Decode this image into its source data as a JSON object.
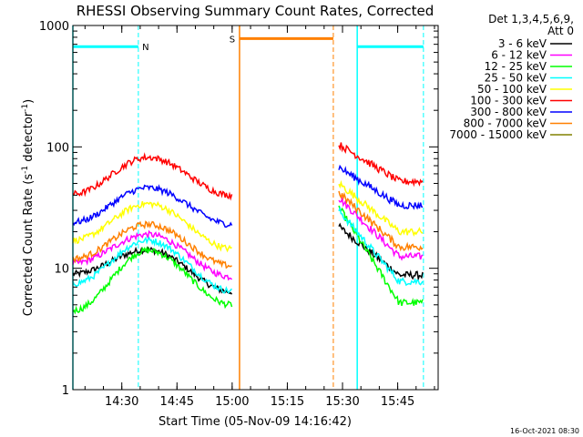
{
  "chart_data": {
    "type": "line",
    "title": "RHESSI Observing Summary Count Rates, Corrected",
    "xlabel": "Start Time (05-Nov-09 14:16:42)",
    "ylabel_main": "Corrected Count Rate (s",
    "ylabel_sup1": "-1",
    "ylabel_mid": " detector",
    "ylabel_sup2": "-1",
    "ylabel_end": ")",
    "yscale": "log",
    "ylim": [
      1,
      1000
    ],
    "xlim": [
      "14:16:42",
      "15:56:00"
    ],
    "grid": false,
    "legend_position": "right-outside",
    "legend_header": [
      "Det 1,3,4,5,6,9,",
      "Att 0"
    ],
    "x_ticks": [
      {
        "label": "14:30",
        "t": "14:30"
      },
      {
        "label": "14:45",
        "t": "14:45"
      },
      {
        "label": "15:00",
        "t": "15:00"
      },
      {
        "label": "15:15",
        "t": "15:15"
      },
      {
        "label": "15:30",
        "t": "15:30"
      },
      {
        "label": "15:45",
        "t": "15:45"
      }
    ],
    "y_ticks": [
      {
        "label": "1",
        "v": 1
      },
      {
        "label": "10",
        "v": 10
      },
      {
        "label": "100",
        "v": 100
      },
      {
        "label": "1000",
        "v": 1000
      }
    ],
    "flags": [
      {
        "label": "N",
        "color": "#00ffff",
        "level": 670,
        "intervals": [
          [
            "14:16:42",
            "14:34:30"
          ],
          [
            "15:34:00",
            "15:52:00"
          ]
        ],
        "marker_times": [
          "14:16:42",
          "14:34:30",
          "15:34:00",
          "15:52:00"
        ],
        "solid_times": [
          "14:16:42",
          "15:34:00"
        ]
      },
      {
        "label": "S",
        "color": "#ff8000",
        "level": 780,
        "intervals": [
          [
            "15:02:00",
            "15:27:30"
          ]
        ],
        "marker_times": [
          "15:02:00",
          "15:27:30"
        ],
        "solid_times": [
          "15:02:00"
        ]
      }
    ],
    "series": [
      {
        "name": "3 - 6 keV",
        "color": "#000000",
        "seg1": {
          "start": "14:16:42",
          "end": "15:00:00",
          "edge": 9.0,
          "peak": 14.2,
          "end_val": 6.4
        },
        "seg2": {
          "start": "15:29:00",
          "end": "15:52:00",
          "start_val": 22,
          "end_val": 8.8
        }
      },
      {
        "name": "6 - 12 keV",
        "color": "#ff00ff",
        "seg1": {
          "start": "14:16:42",
          "end": "15:00:00",
          "edge": 11.0,
          "peak": 19.0,
          "end_val": 8.5
        },
        "seg2": {
          "start": "15:29:00",
          "end": "15:52:00",
          "start_val": 38,
          "end_val": 12.5
        }
      },
      {
        "name": "12 - 25 keV",
        "color": "#00ff00",
        "seg1": {
          "start": "14:16:42",
          "end": "15:00:00",
          "edge": 4.5,
          "peak": 14.0,
          "end_val": 5.0
        },
        "seg2": {
          "start": "15:29:00",
          "end": "15:52:00",
          "start_val": 32,
          "end_val": 5.2
        }
      },
      {
        "name": "25 - 50 keV",
        "color": "#00ffff",
        "seg1": {
          "start": "14:16:42",
          "end": "15:00:00",
          "edge": 7.5,
          "peak": 17.0,
          "end_val": 6.5
        },
        "seg2": {
          "start": "15:29:00",
          "end": "15:52:00",
          "start_val": 30,
          "end_val": 7.8
        }
      },
      {
        "name": "50 - 100 keV",
        "color": "#ffff00",
        "seg1": {
          "start": "14:16:42",
          "end": "15:00:00",
          "edge": 17.0,
          "peak": 34.0,
          "end_val": 14.5
        },
        "seg2": {
          "start": "15:29:00",
          "end": "15:52:00",
          "start_val": 50,
          "end_val": 20
        }
      },
      {
        "name": "100 - 300 keV",
        "color": "#ff0000",
        "seg1": {
          "start": "14:16:42",
          "end": "15:00:00",
          "edge": 41.0,
          "peak": 82.0,
          "end_val": 40.0
        },
        "seg2": {
          "start": "15:29:00",
          "end": "15:52:00",
          "start_val": 105,
          "end_val": 52
        }
      },
      {
        "name": "300 - 800 keV",
        "color": "#0000ff",
        "seg1": {
          "start": "14:16:42",
          "end": "15:00:00",
          "edge": 24.0,
          "peak": 46.0,
          "end_val": 23.0
        },
        "seg2": {
          "start": "15:29:00",
          "end": "15:52:00",
          "start_val": 68,
          "end_val": 33
        }
      },
      {
        "name": "800 - 7000 keV",
        "color": "#ff8000",
        "seg1": {
          "start": "14:16:42",
          "end": "15:00:00",
          "edge": 12.0,
          "peak": 23.0,
          "end_val": 10.5
        },
        "seg2": {
          "start": "15:29:00",
          "end": "15:52:00",
          "start_val": 42,
          "end_val": 15
        }
      },
      {
        "name": "7000 - 15000 keV",
        "color": "#808000",
        "seg1": null,
        "seg2": null
      }
    ],
    "timestamp": "16-Oct-2021 08:30"
  }
}
